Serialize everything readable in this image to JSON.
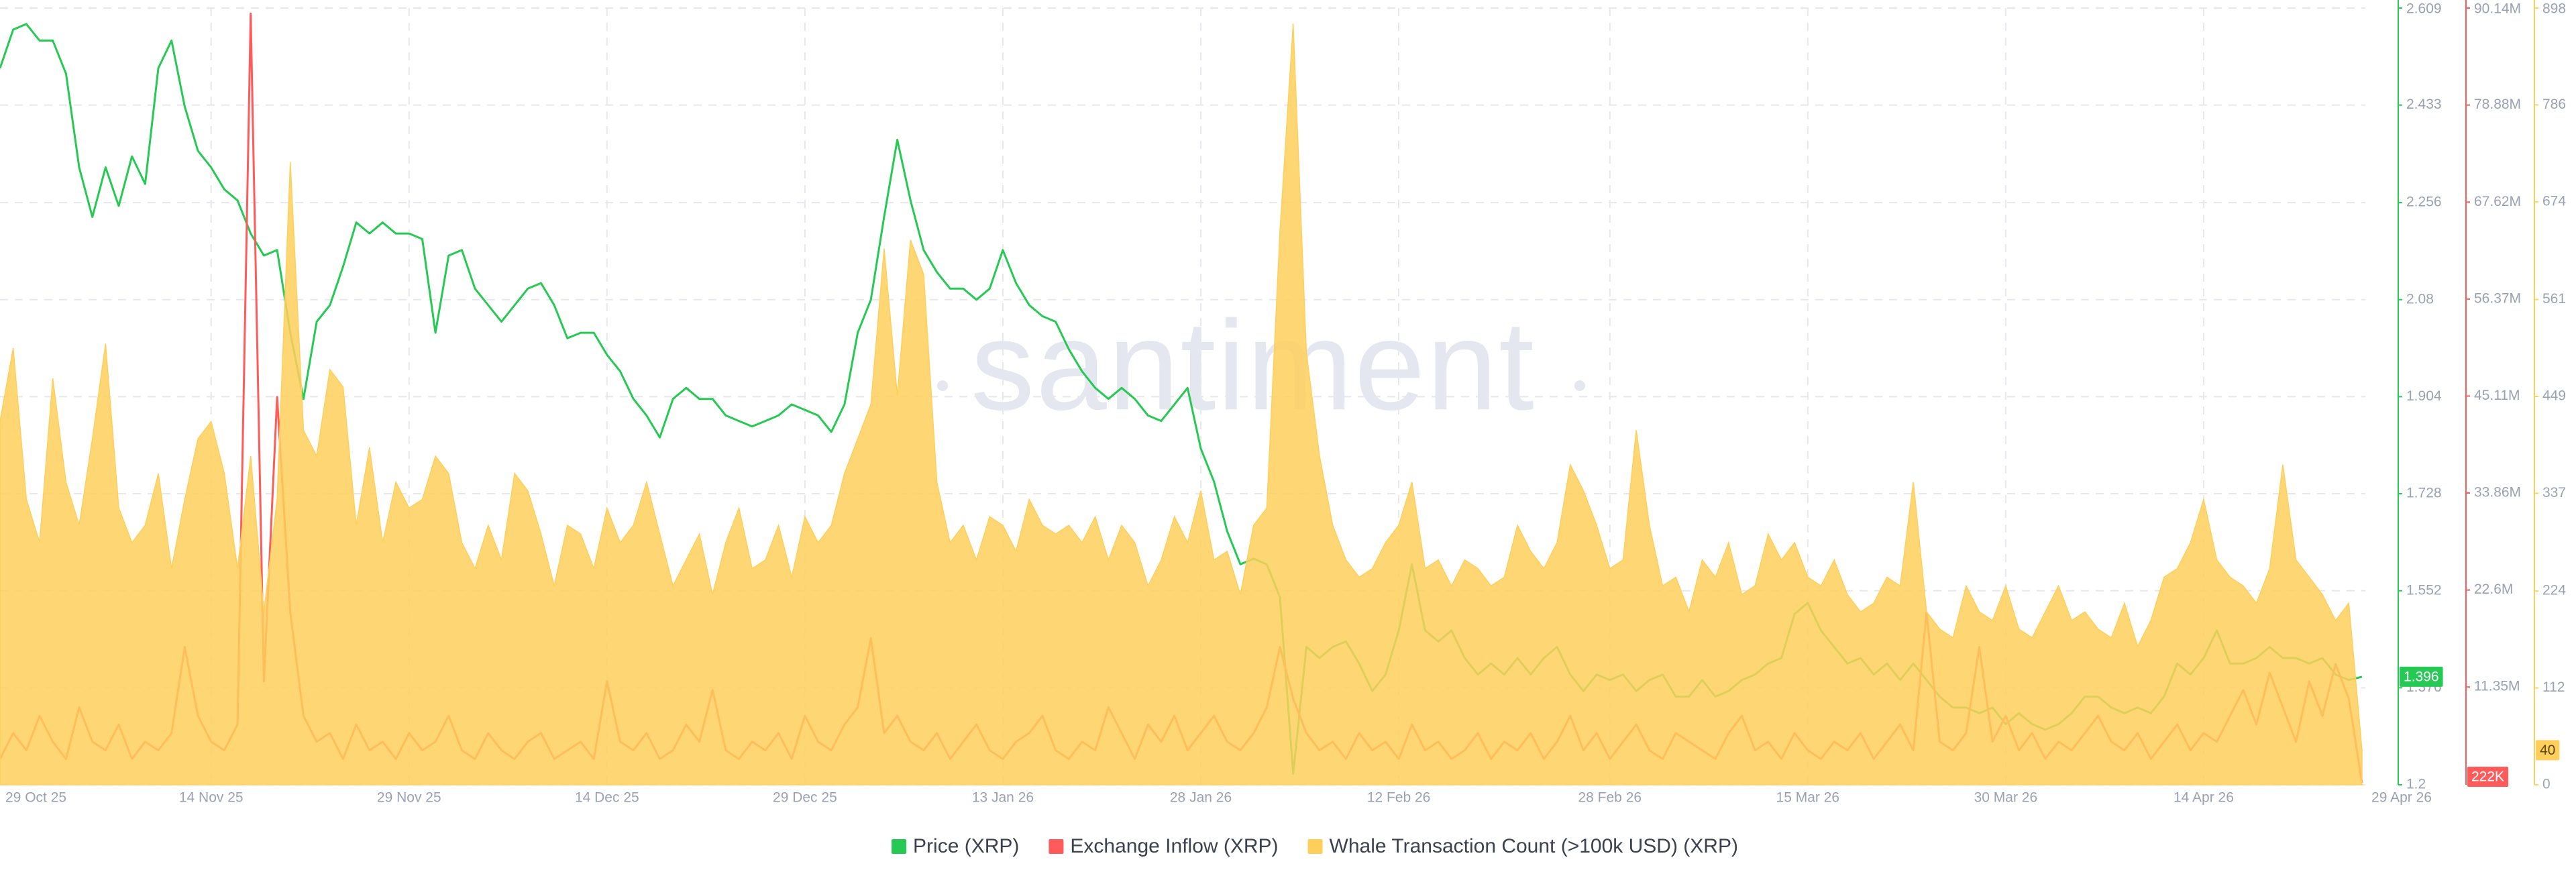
{
  "chart_data": {
    "type": "line",
    "watermark": "santiment",
    "legend": "bottom",
    "grid": true,
    "categories": [
      "29 Oct 25",
      null,
      null,
      null,
      null,
      null,
      null,
      null,
      null,
      null,
      null,
      null,
      null,
      null,
      null,
      null,
      "14 Nov 25",
      null,
      null,
      null,
      null,
      null,
      null,
      null,
      null,
      null,
      null,
      null,
      null,
      null,
      null,
      "29 Nov 25",
      null,
      null,
      null,
      null,
      null,
      null,
      null,
      null,
      null,
      null,
      null,
      null,
      null,
      null,
      "14 Dec 25",
      null,
      null,
      null,
      null,
      null,
      null,
      null,
      null,
      null,
      null,
      null,
      null,
      null,
      null,
      "29 Dec 25",
      null,
      null,
      null,
      null,
      null,
      null,
      null,
      null,
      null,
      null,
      null,
      null,
      null,
      null,
      "13 Jan 26",
      null,
      null,
      null,
      null,
      null,
      null,
      null,
      null,
      null,
      null,
      null,
      null,
      null,
      null,
      "28 Jan 26",
      null,
      null,
      null,
      null,
      null,
      null,
      null,
      null,
      null,
      null,
      null,
      null,
      null,
      null,
      "12 Feb 26",
      null,
      null,
      null,
      null,
      null,
      null,
      null,
      null,
      null,
      null,
      null,
      null,
      null,
      null,
      null,
      "28 Feb 26",
      null,
      null,
      null,
      null,
      null,
      null,
      null,
      null,
      null,
      null,
      null,
      null,
      null,
      null,
      "15 Mar 26",
      null,
      null,
      null,
      null,
      null,
      null,
      null,
      null,
      null,
      null,
      null,
      null,
      null,
      null,
      "30 Mar 26",
      null,
      null,
      null,
      null,
      null,
      null,
      null,
      null,
      null,
      null,
      null,
      null,
      null,
      null,
      "14 Apr 26",
      null,
      null,
      null,
      null,
      null,
      null,
      null,
      null,
      null,
      null,
      null,
      null,
      null,
      null,
      "29 Apr 26"
    ],
    "ylim": [
      1.2,
      2.609
    ],
    "yticks": [
      1.2,
      1.376,
      1.552,
      1.728,
      1.904,
      2.08,
      2.256,
      2.433,
      2.609
    ],
    "y2lim": [
      0,
      90140000
    ],
    "y2ticks": [
      {
        "value": 11350000,
        "label": "11.35M"
      },
      {
        "value": 22600000,
        "label": "22.6M"
      },
      {
        "value": 33860000,
        "label": "33.86M"
      },
      {
        "value": 45110000,
        "label": "45.11M"
      },
      {
        "value": 56370000,
        "label": "56.37M"
      },
      {
        "value": 67620000,
        "label": "67.62M"
      },
      {
        "value": 78880000,
        "label": "78.88M"
      },
      {
        "value": 90140000,
        "label": "90.14M"
      }
    ],
    "y3lim": [
      0,
      898
    ],
    "y3ticks": [
      0,
      112,
      224,
      337,
      449,
      561,
      674,
      786,
      898
    ],
    "series": [
      {
        "name": "Price (XRP)",
        "color": "#26c953",
        "axis": "y",
        "style": "line",
        "current_label": "1.396",
        "values": [
          2.5,
          2.57,
          2.58,
          2.55,
          2.55,
          2.49,
          2.32,
          2.23,
          2.32,
          2.25,
          2.34,
          2.29,
          2.5,
          2.55,
          2.43,
          2.35,
          2.32,
          2.28,
          2.26,
          2.2,
          2.16,
          2.17,
          2.02,
          1.9,
          2.04,
          2.07,
          2.14,
          2.22,
          2.2,
          2.22,
          2.2,
          2.2,
          2.19,
          2.02,
          2.16,
          2.17,
          2.1,
          2.07,
          2.04,
          2.07,
          2.1,
          2.11,
          2.07,
          2.01,
          2.02,
          2.02,
          1.98,
          1.95,
          1.9,
          1.87,
          1.83,
          1.9,
          1.92,
          1.9,
          1.9,
          1.87,
          1.86,
          1.85,
          1.86,
          1.87,
          1.89,
          1.88,
          1.87,
          1.84,
          1.89,
          2.02,
          2.08,
          2.23,
          2.37,
          2.26,
          2.17,
          2.13,
          2.1,
          2.1,
          2.08,
          2.1,
          2.17,
          2.11,
          2.07,
          2.05,
          2.04,
          1.99,
          1.95,
          1.92,
          1.9,
          1.92,
          1.9,
          1.87,
          1.86,
          1.89,
          1.92,
          1.81,
          1.75,
          1.66,
          1.6,
          1.61,
          1.6,
          1.54,
          1.22,
          1.45,
          1.43,
          1.45,
          1.46,
          1.42,
          1.37,
          1.4,
          1.48,
          1.6,
          1.48,
          1.46,
          1.48,
          1.43,
          1.4,
          1.42,
          1.4,
          1.43,
          1.4,
          1.43,
          1.45,
          1.4,
          1.37,
          1.4,
          1.39,
          1.4,
          1.37,
          1.39,
          1.4,
          1.36,
          1.36,
          1.39,
          1.36,
          1.37,
          1.39,
          1.4,
          1.42,
          1.43,
          1.51,
          1.53,
          1.48,
          1.45,
          1.42,
          1.43,
          1.4,
          1.42,
          1.39,
          1.42,
          1.39,
          1.36,
          1.34,
          1.34,
          1.33,
          1.34,
          1.31,
          1.33,
          1.31,
          1.3,
          1.31,
          1.33,
          1.36,
          1.36,
          1.34,
          1.33,
          1.34,
          1.33,
          1.36,
          1.42,
          1.4,
          1.43,
          1.48,
          1.42,
          1.42,
          1.43,
          1.45,
          1.43,
          1.43,
          1.42,
          1.43,
          1.4,
          1.39,
          1.396,
          null,
          null,
          null
        ]
      },
      {
        "name": "Exchange Inflow (XRP)",
        "color": "#ff5b5b",
        "axis": "y2",
        "style": "line",
        "current_label": "222K",
        "values": [
          3000000,
          6000000,
          4000000,
          8000000,
          5000000,
          3000000,
          9000000,
          5000000,
          4000000,
          7000000,
          3000000,
          5000000,
          4000000,
          6000000,
          16000000,
          8000000,
          5000000,
          4000000,
          7000000,
          89500000,
          12000000,
          45000000,
          20000000,
          8000000,
          5000000,
          6000000,
          3000000,
          7000000,
          4000000,
          5000000,
          3000000,
          6000000,
          4000000,
          5000000,
          8000000,
          4000000,
          3000000,
          6000000,
          4000000,
          3000000,
          5000000,
          6000000,
          3000000,
          4000000,
          5000000,
          3000000,
          12000000,
          5000000,
          4000000,
          6000000,
          3000000,
          4000000,
          7000000,
          5000000,
          11000000,
          4000000,
          3000000,
          5000000,
          4000000,
          6000000,
          3000000,
          8000000,
          5000000,
          4000000,
          7000000,
          9000000,
          17000000,
          6000000,
          8000000,
          5000000,
          4000000,
          6000000,
          3000000,
          5000000,
          7000000,
          4000000,
          3000000,
          5000000,
          6000000,
          8000000,
          4000000,
          3000000,
          5000000,
          4000000,
          9000000,
          6000000,
          3000000,
          7000000,
          5000000,
          8000000,
          4000000,
          6000000,
          8000000,
          5000000,
          4000000,
          6000000,
          9000000,
          16000000,
          10000000,
          6000000,
          4000000,
          5000000,
          3000000,
          6000000,
          4000000,
          5000000,
          3000000,
          7000000,
          4000000,
          5000000,
          3000000,
          4000000,
          6000000,
          3000000,
          5000000,
          4000000,
          6000000,
          3000000,
          5000000,
          8000000,
          4000000,
          6000000,
          3000000,
          5000000,
          7000000,
          4000000,
          3000000,
          6000000,
          5000000,
          4000000,
          3000000,
          6000000,
          8000000,
          4000000,
          5000000,
          3000000,
          6000000,
          4000000,
          3000000,
          5000000,
          4000000,
          6000000,
          3000000,
          5000000,
          7000000,
          4000000,
          20000000,
          5000000,
          4000000,
          6000000,
          16000000,
          5000000,
          8000000,
          4000000,
          6000000,
          3000000,
          5000000,
          4000000,
          6000000,
          8000000,
          5000000,
          4000000,
          6000000,
          3000000,
          5000000,
          7000000,
          4000000,
          6000000,
          5000000,
          8000000,
          11000000,
          7000000,
          13000000,
          9000000,
          5000000,
          12000000,
          8000000,
          14000000,
          10000000,
          222000,
          null,
          null,
          null
        ]
      },
      {
        "name": "Whale Transaction Count (>100k USD) (XRP)",
        "color": "#ffcf5c",
        "axis": "y3",
        "style": "area",
        "current_label": "40",
        "values": [
          420,
          505,
          330,
          280,
          470,
          350,
          300,
          400,
          510,
          320,
          280,
          300,
          360,
          250,
          330,
          400,
          420,
          360,
          250,
          380,
          200,
          330,
          720,
          410,
          380,
          480,
          460,
          300,
          390,
          280,
          350,
          320,
          330,
          380,
          360,
          280,
          250,
          300,
          260,
          360,
          340,
          290,
          230,
          300,
          290,
          250,
          320,
          280,
          300,
          350,
          290,
          230,
          260,
          290,
          220,
          280,
          320,
          250,
          260,
          300,
          240,
          310,
          280,
          300,
          360,
          400,
          440,
          620,
          450,
          630,
          590,
          350,
          280,
          300,
          260,
          310,
          300,
          270,
          330,
          300,
          290,
          300,
          280,
          310,
          260,
          300,
          280,
          230,
          260,
          310,
          280,
          340,
          260,
          270,
          220,
          300,
          320,
          640,
          880,
          500,
          380,
          300,
          260,
          240,
          250,
          280,
          300,
          350,
          250,
          260,
          230,
          260,
          250,
          230,
          240,
          300,
          270,
          250,
          280,
          370,
          340,
          300,
          250,
          260,
          410,
          300,
          230,
          240,
          200,
          260,
          240,
          280,
          220,
          230,
          290,
          260,
          280,
          240,
          230,
          260,
          220,
          200,
          210,
          240,
          230,
          350,
          200,
          180,
          170,
          230,
          200,
          190,
          230,
          180,
          170,
          200,
          230,
          190,
          200,
          180,
          170,
          210,
          160,
          190,
          240,
          250,
          280,
          330,
          260,
          240,
          230,
          210,
          250,
          370,
          260,
          240,
          220,
          190,
          210,
          40,
          null,
          null,
          null
        ]
      }
    ]
  }
}
